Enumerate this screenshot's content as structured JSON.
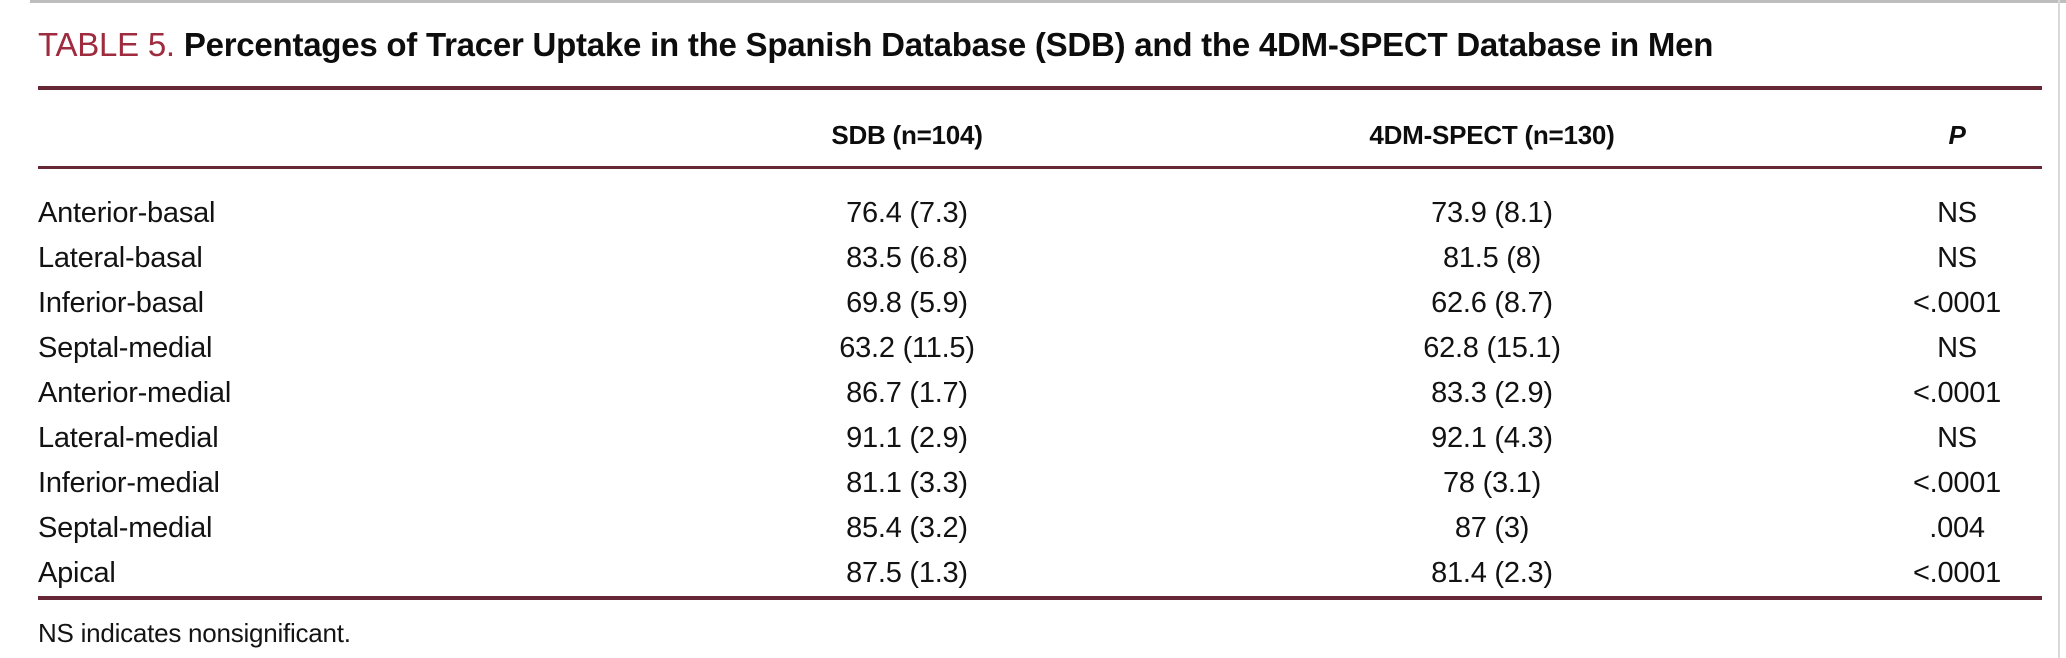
{
  "colors": {
    "accent_maroon": "#9e2b3e",
    "rule_maroon": "#662836",
    "text": "#0d0d0d",
    "background": "#ffffff"
  },
  "table": {
    "label": "TABLE 5.",
    "title": "Percentages of Tracer Uptake in the Spanish Database (SDB) and the 4DM-SPECT Database in Men",
    "header": {
      "region": "",
      "sdb": "SDB (n=104)",
      "spect": "4DM-SPECT (n=130)",
      "p": "P"
    },
    "rows": [
      {
        "region": "Anterior-basal",
        "sdb": "76.4 (7.3)",
        "spect": "73.9 (8.1)",
        "p": "NS"
      },
      {
        "region": "Lateral-basal",
        "sdb": "83.5 (6.8)",
        "spect": "81.5 (8)",
        "p": "NS"
      },
      {
        "region": "Inferior-basal",
        "sdb": "69.8 (5.9)",
        "spect": "62.6 (8.7)",
        "p": "<.0001"
      },
      {
        "region": "Septal-medial",
        "sdb": "63.2 (11.5)",
        "spect": "62.8 (15.1)",
        "p": "NS"
      },
      {
        "region": "Anterior-medial",
        "sdb": "86.7 (1.7)",
        "spect": "83.3 (2.9)",
        "p": "<.0001"
      },
      {
        "region": "Lateral-medial",
        "sdb": "91.1 (2.9)",
        "spect": "92.1 (4.3)",
        "p": "NS"
      },
      {
        "region": "Inferior-medial",
        "sdb": "81.1 (3.3)",
        "spect": "78 (3.1)",
        "p": "<.0001"
      },
      {
        "region": "Septal-medial",
        "sdb": "85.4 (3.2)",
        "spect": "87 (3)",
        "p": ".004"
      },
      {
        "region": "Apical",
        "sdb": "87.5 (1.3)",
        "spect": "81.4 (2.3)",
        "p": "<.0001"
      }
    ],
    "footnote": "NS indicates nonsignificant."
  }
}
